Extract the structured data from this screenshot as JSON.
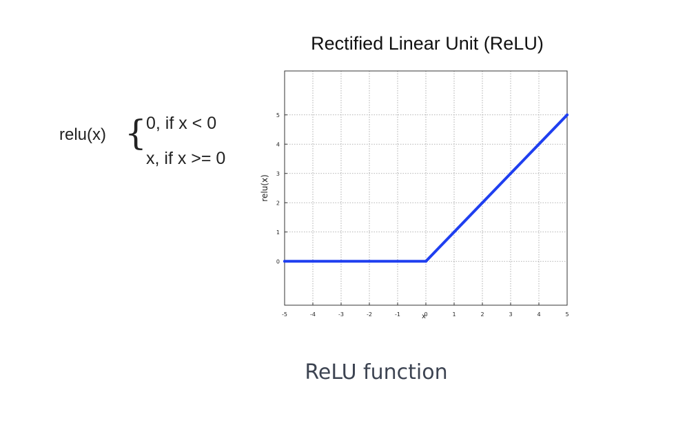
{
  "formula": {
    "lhs": "relu(x)",
    "case1": "0, if x < 0",
    "case2": "x, if x >= 0"
  },
  "caption": "ReLU function",
  "chart_data": {
    "type": "line",
    "title": "Rectified Linear Unit (ReLU)",
    "xlabel": "x",
    "ylabel": "relu(x)",
    "xlim": [
      -5,
      5
    ],
    "ylim": [
      -1.5,
      6.5
    ],
    "xticks": [
      -5,
      -4,
      -3,
      -2,
      -1,
      0,
      1,
      2,
      3,
      4,
      5
    ],
    "yticks": [
      0,
      1,
      2,
      3,
      4,
      5
    ],
    "grid": true,
    "series": [
      {
        "color": "#1f3ff0",
        "x": [
          -5,
          -4,
          -3,
          -2,
          -1,
          0,
          1,
          2,
          3,
          4,
          5
        ],
        "y": [
          0,
          0,
          0,
          0,
          0,
          0,
          1,
          2,
          3,
          4,
          5
        ]
      }
    ]
  }
}
